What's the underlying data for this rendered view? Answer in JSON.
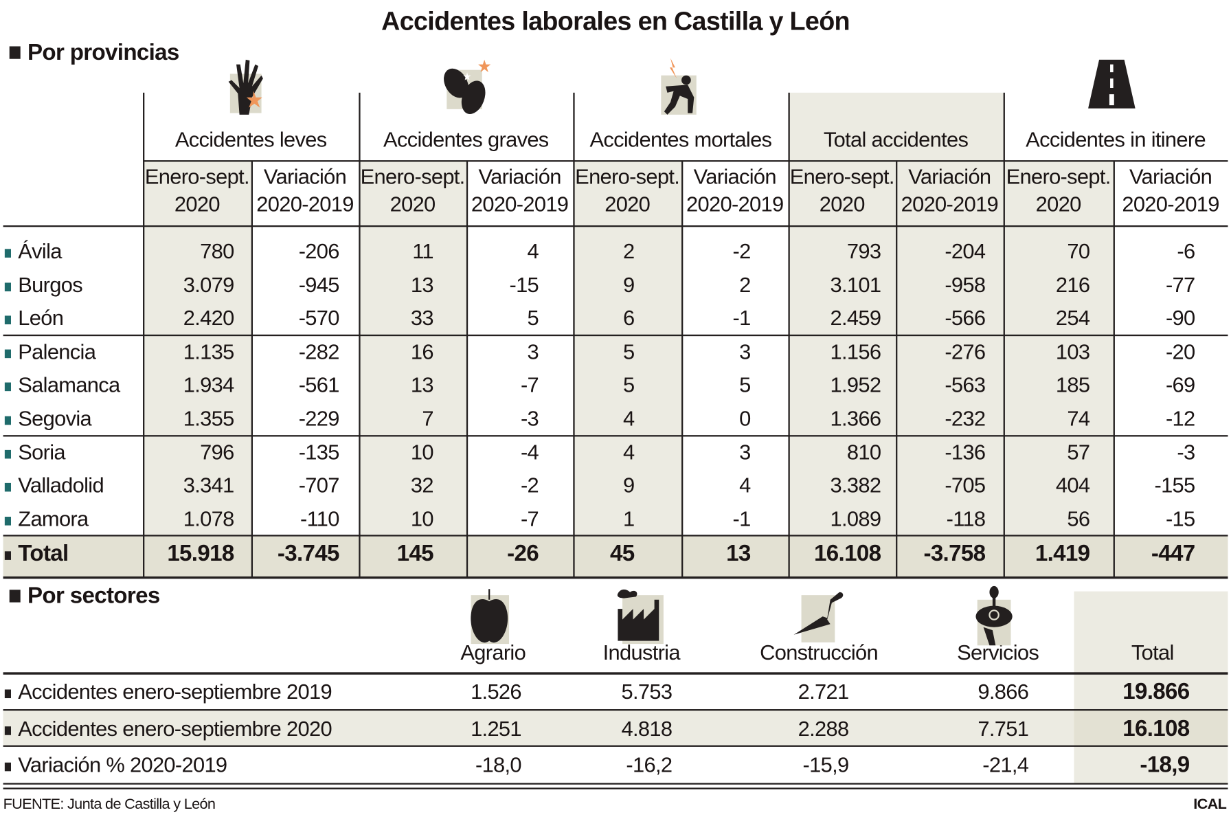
{
  "title": "Accidentes laborales en Castilla y León",
  "provincias": {
    "heading": "Por provincias",
    "groups": [
      {
        "label": "Accidentes leves",
        "icon": "injured-hand-icon"
      },
      {
        "label": "Accidentes graves",
        "icon": "injured-foot-icon"
      },
      {
        "label": "Accidentes mortales",
        "icon": "electrocution-icon"
      },
      {
        "label": "Total accidentes",
        "icon": ""
      },
      {
        "label": "Accidentes in itinere",
        "icon": "road-icon"
      }
    ],
    "subheaders": {
      "a1": "Enero-sept.",
      "a2": "2020",
      "b1": "Variación",
      "b2": "2020-2019"
    },
    "rows": [
      {
        "name": "Ávila",
        "values": [
          "780",
          "-206",
          "11",
          "4",
          "2",
          "-2",
          "793",
          "-204",
          "70",
          "-6"
        ]
      },
      {
        "name": "Burgos",
        "values": [
          "3.079",
          "-945",
          "13",
          "-15",
          "9",
          "2",
          "3.101",
          "-958",
          "216",
          "-77"
        ]
      },
      {
        "name": "León",
        "values": [
          "2.420",
          "-570",
          "33",
          "5",
          "6",
          "-1",
          "2.459",
          "-566",
          "254",
          "-90"
        ]
      },
      {
        "name": "Palencia",
        "values": [
          "1.135",
          "-282",
          "16",
          "3",
          "5",
          "3",
          "1.156",
          "-276",
          "103",
          "-20"
        ]
      },
      {
        "name": "Salamanca",
        "values": [
          "1.934",
          "-561",
          "13",
          "-7",
          "5",
          "5",
          "1.952",
          "-563",
          "185",
          "-69"
        ]
      },
      {
        "name": "Segovia",
        "values": [
          "1.355",
          "-229",
          "7",
          "-3",
          "4",
          "0",
          "1.366",
          "-232",
          "74",
          "-12"
        ]
      },
      {
        "name": "Soria",
        "values": [
          "796",
          "-135",
          "10",
          "-4",
          "4",
          "3",
          "810",
          "-136",
          "57",
          "-3"
        ]
      },
      {
        "name": "Valladolid",
        "values": [
          "3.341",
          "-707",
          "32",
          "-2",
          "9",
          "4",
          "3.382",
          "-705",
          "404",
          "-155"
        ]
      },
      {
        "name": "Zamora",
        "values": [
          "1.078",
          "-110",
          "10",
          "-7",
          "1",
          "-1",
          "1.089",
          "-118",
          "56",
          "-15"
        ]
      }
    ],
    "total": {
      "name": "Total",
      "values": [
        "15.918",
        "-3.745",
        "145",
        "-26",
        "45",
        "13",
        "16.108",
        "-3.758",
        "1.419",
        "-447"
      ]
    }
  },
  "sectores": {
    "heading": "Por sectores",
    "columns": [
      {
        "label": "Agrario",
        "icon": "apple-icon"
      },
      {
        "label": "Industria",
        "icon": "factory-icon"
      },
      {
        "label": "Construcción",
        "icon": "trowel-icon"
      },
      {
        "label": "Servicios",
        "icon": "waiter-tray-icon"
      },
      {
        "label": "Total",
        "icon": ""
      }
    ],
    "rows": [
      {
        "name": "Accidentes enero-septiembre 2019",
        "values": [
          "1.526",
          "5.753",
          "2.721",
          "9.866",
          "19.866"
        ]
      },
      {
        "name": "Accidentes enero-septiembre 2020",
        "values": [
          "1.251",
          "4.818",
          "2.288",
          "7.751",
          "16.108"
        ]
      },
      {
        "name": "Variación % 2020-2019",
        "values": [
          "-18,0",
          "-16,2",
          "-15,9",
          "-21,4",
          "-18,9"
        ]
      }
    ]
  },
  "footer": {
    "source": "FUENTE: Junta de Castilla y León",
    "credit": "ICAL"
  },
  "colors": {
    "shade": "#ecebe2",
    "total_shade": "#e3e1d3",
    "bullet": "#1f6b6b",
    "accent_orange": "#f0965a"
  }
}
